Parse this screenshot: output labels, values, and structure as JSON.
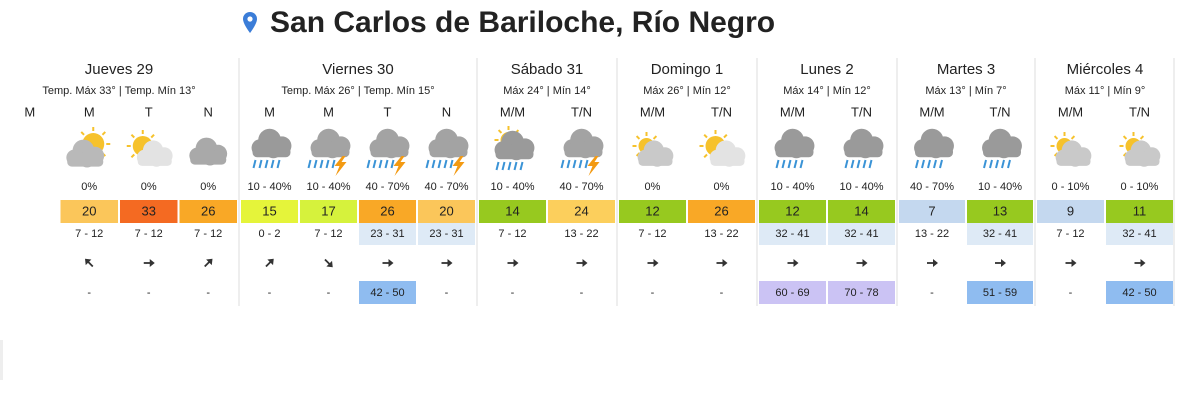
{
  "header": {
    "title": "San Carlos de Bariloche, Río Negro"
  },
  "days": [
    {
      "name": "Jueves 29",
      "temps": "Temp. Máx 33° | Temp. Mín 13°",
      "periods": [
        {
          "label": "M"
        },
        {
          "label": "M",
          "precip": "0%",
          "temp": "20",
          "wind": "7 - 12",
          "gust": "-"
        },
        {
          "label": "T",
          "precip": "0%",
          "temp": "33",
          "wind": "7 - 12",
          "gust": "-"
        },
        {
          "label": "N",
          "precip": "0%",
          "temp": "26",
          "wind": "7 - 12",
          "gust": "-"
        }
      ]
    },
    {
      "name": "Viernes 30",
      "temps": "Temp. Máx 26° | Temp. Mín 15°",
      "periods": [
        {
          "label": "M",
          "precip": "10 - 40%",
          "temp": "15",
          "wind": "0 - 2",
          "gust": "-"
        },
        {
          "label": "M",
          "precip": "10 - 40%",
          "temp": "17",
          "wind": "7 - 12",
          "gust": "-"
        },
        {
          "label": "T",
          "precip": "40 - 70%",
          "temp": "26",
          "wind": "23 - 31",
          "gust": "42 - 50"
        },
        {
          "label": "N",
          "precip": "40 - 70%",
          "temp": "20",
          "wind": "23 - 31",
          "gust": "-"
        }
      ]
    },
    {
      "name": "Sábado 31",
      "temps": "Máx 24° | Mín 14°",
      "periods": [
        {
          "label": "M/M",
          "precip": "10 - 40%",
          "temp": "14",
          "wind": "7 - 12",
          "gust": "-"
        },
        {
          "label": "T/N",
          "precip": "40 - 70%",
          "temp": "24",
          "wind": "13 - 22",
          "gust": "-"
        }
      ]
    },
    {
      "name": "Domingo 1",
      "temps": "Máx 26° | Mín 12°",
      "periods": [
        {
          "label": "M/M",
          "precip": "0%",
          "temp": "12",
          "wind": "7 - 12",
          "gust": "-"
        },
        {
          "label": "T/N",
          "precip": "0%",
          "temp": "26",
          "wind": "13 - 22",
          "gust": "-"
        }
      ]
    },
    {
      "name": "Lunes 2",
      "temps": "Máx 14° | Mín 12°",
      "periods": [
        {
          "label": "M/M",
          "precip": "10 - 40%",
          "temp": "12",
          "wind": "32 - 41",
          "gust": "60 - 69"
        },
        {
          "label": "T/N",
          "precip": "10 - 40%",
          "temp": "14",
          "wind": "32 - 41",
          "gust": "70 - 78"
        }
      ]
    },
    {
      "name": "Martes 3",
      "temps": "Máx 13° | Mín 7°",
      "periods": [
        {
          "label": "M/M",
          "precip": "40 - 70%",
          "temp": "7",
          "wind": "13 - 22",
          "gust": "-"
        },
        {
          "label": "T/N",
          "precip": "10 - 40%",
          "temp": "13",
          "wind": "32 - 41",
          "gust": "51 - 59"
        }
      ]
    },
    {
      "name": "Miércoles 4",
      "temps": "Máx 11° | Mín 9°",
      "periods": [
        {
          "label": "M/M",
          "precip": "0 - 10%",
          "temp": "9",
          "wind": "7 - 12",
          "gust": "-"
        },
        {
          "label": "T/N",
          "precip": "0 - 10%",
          "temp": "11",
          "wind": "32 - 41",
          "gust": "42 - 50"
        }
      ]
    }
  ]
}
